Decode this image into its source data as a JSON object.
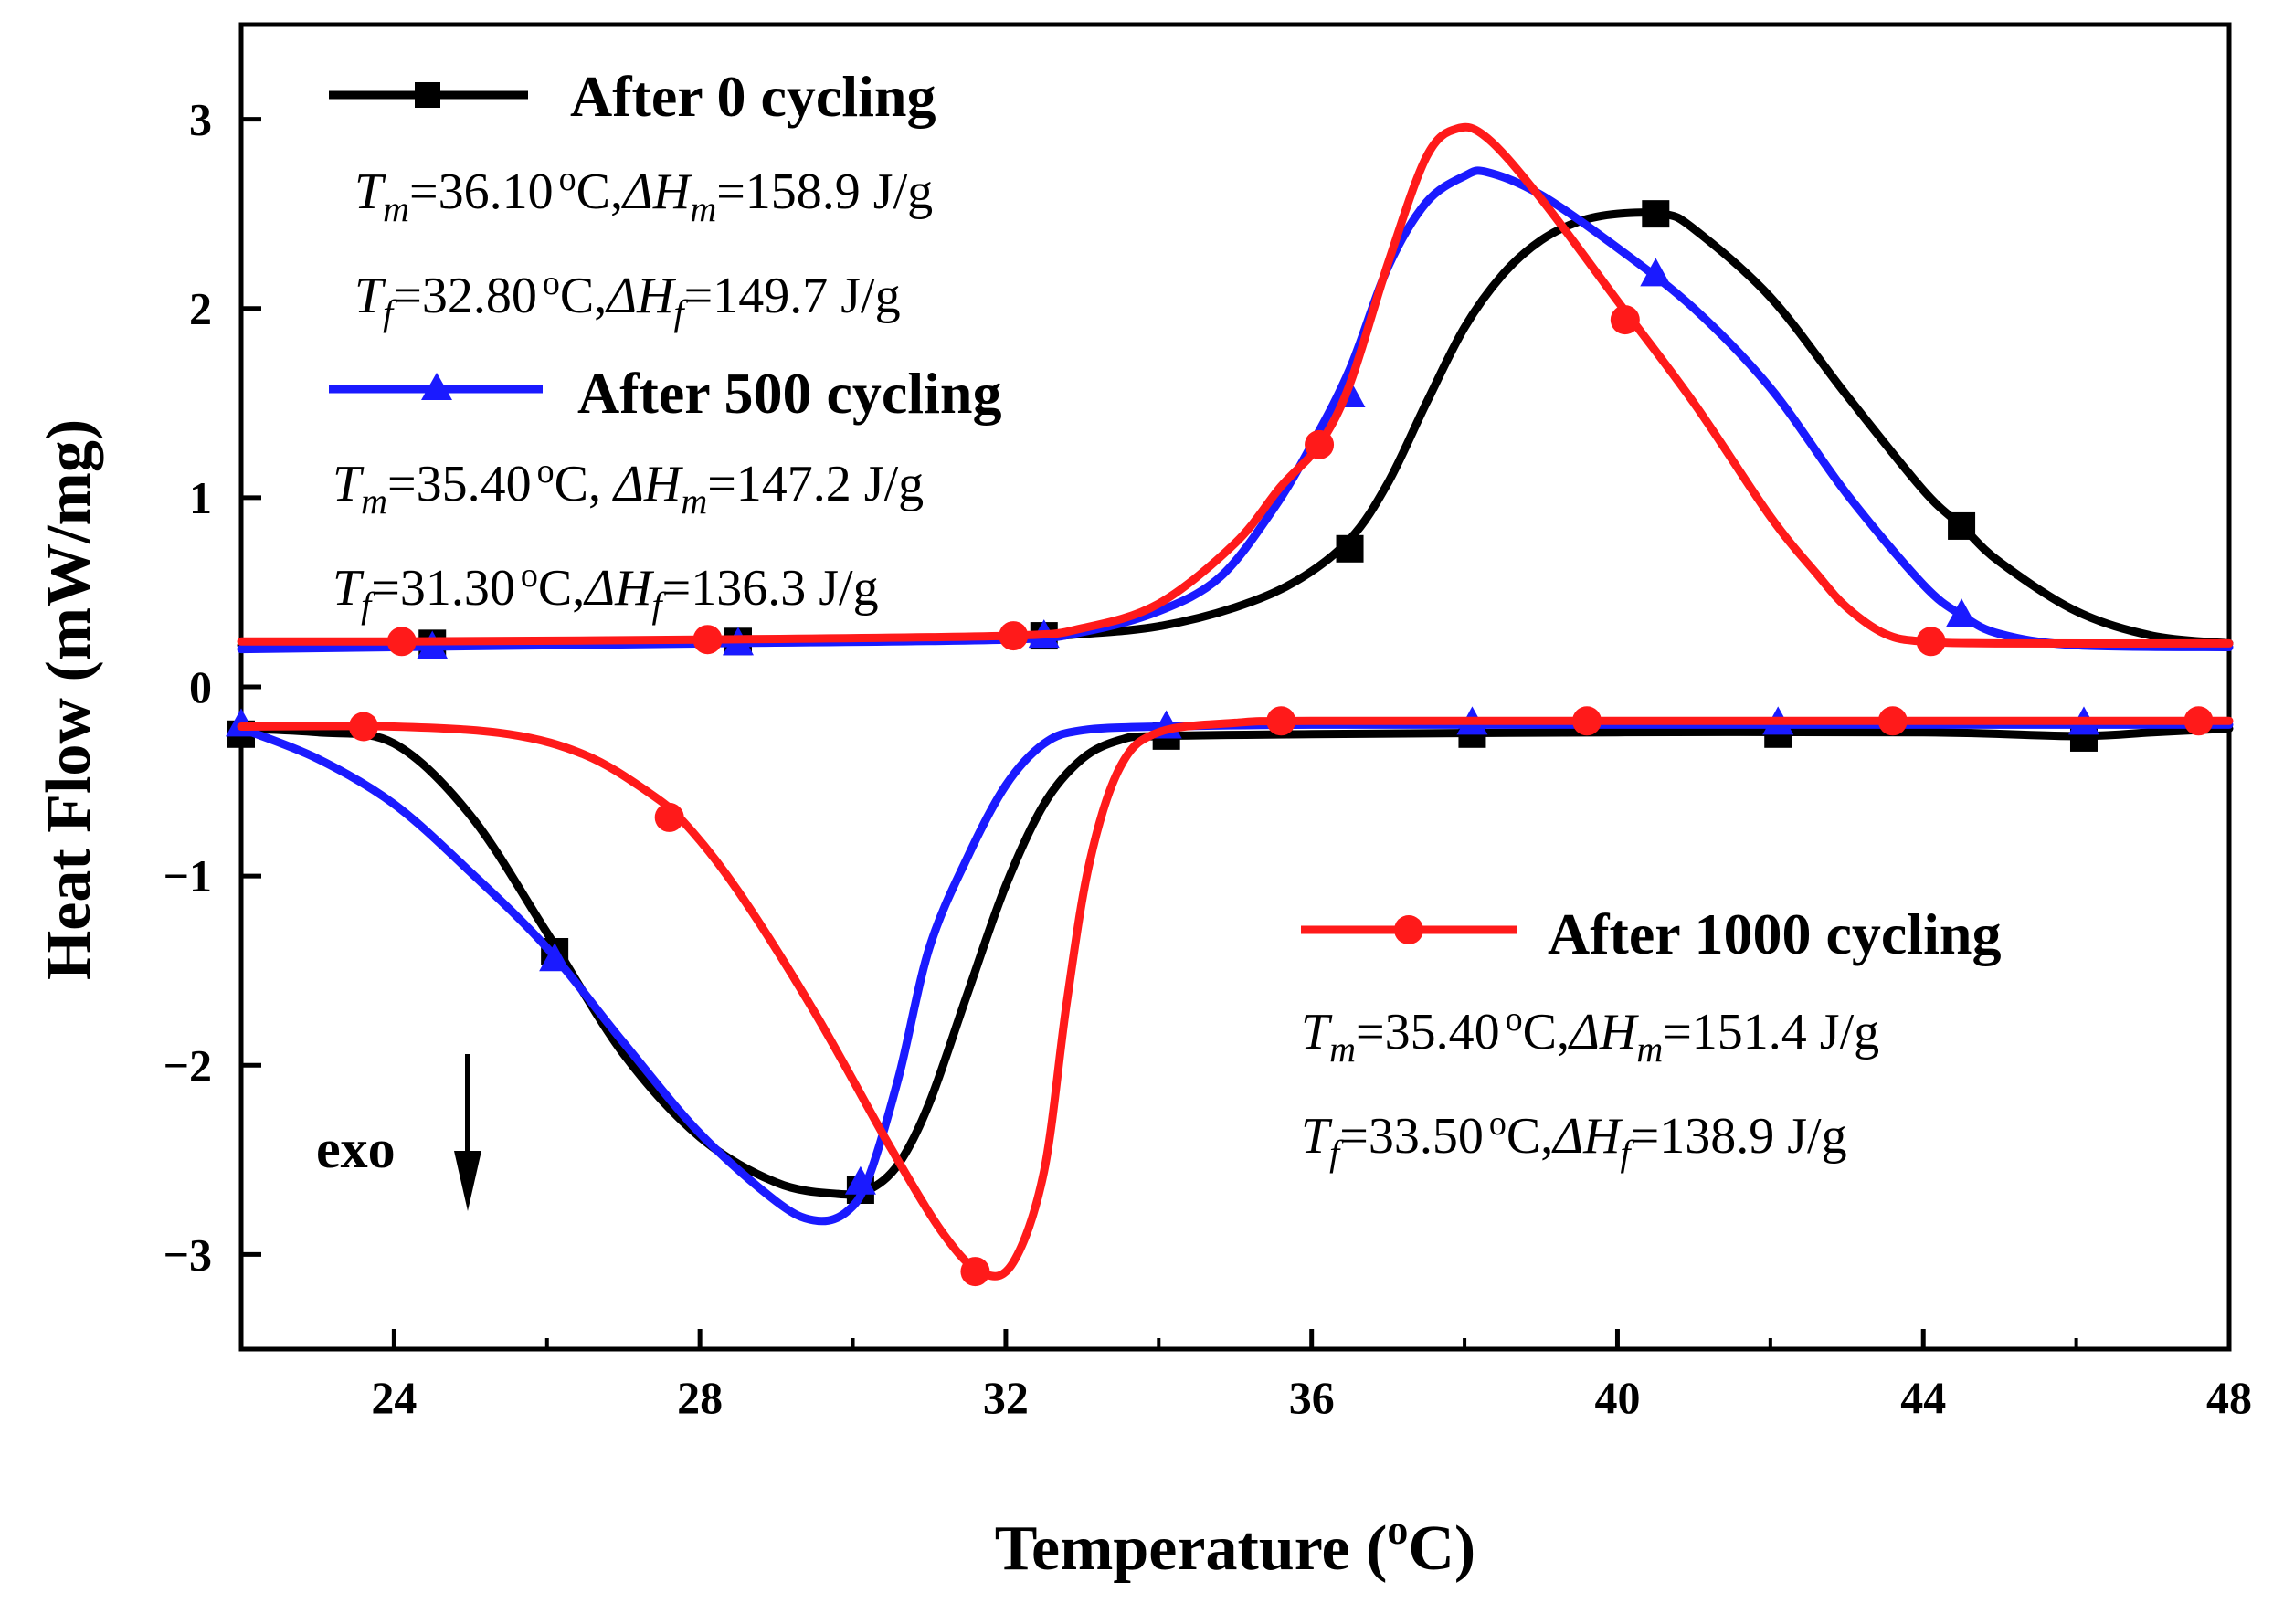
{
  "chart_data": {
    "type": "line",
    "xlabel": "Temperature (°C)",
    "xlabel_parts": {
      "prefix": "Temperature (",
      "sup": "o",
      "suffix": "C)"
    },
    "ylabel": "Heat Flow (mW/mg)",
    "xlim": [
      22,
      48
    ],
    "ylim": [
      -3.5,
      3.5
    ],
    "x_ticks": [
      24,
      28,
      32,
      36,
      40,
      44,
      48
    ],
    "y_ticks": [
      3,
      2,
      1,
      0,
      -1,
      -2,
      -3
    ],
    "y_tick_labels": [
      "3",
      "2",
      "1",
      "0",
      "−1",
      "−2",
      "−3"
    ],
    "grid": false,
    "exo_label": "exo",
    "colors": {
      "s0": "#000000",
      "s500": "#1a1aff",
      "s1000": "#ff1a1a",
      "axes": "#000000"
    },
    "series": [
      {
        "name": "After 0 cycling",
        "color": "#000000",
        "marker": "square",
        "heating": [
          [
            22,
            0.22
          ],
          [
            24,
            0.23
          ],
          [
            28,
            0.24
          ],
          [
            32,
            0.26
          ],
          [
            33,
            0.28
          ],
          [
            34,
            0.32
          ],
          [
            35,
            0.42
          ],
          [
            35.8,
            0.56
          ],
          [
            36.5,
            0.78
          ],
          [
            37,
            1.08
          ],
          [
            37.5,
            1.5
          ],
          [
            38,
            1.9
          ],
          [
            38.5,
            2.18
          ],
          [
            39,
            2.36
          ],
          [
            39.5,
            2.46
          ],
          [
            40,
            2.5
          ],
          [
            40.6,
            2.5
          ],
          [
            41,
            2.42
          ],
          [
            42,
            2.06
          ],
          [
            43,
            1.54
          ],
          [
            44,
            1.04
          ],
          [
            44.5,
            0.85
          ],
          [
            45,
            0.66
          ],
          [
            46,
            0.4
          ],
          [
            47,
            0.27
          ],
          [
            48,
            0.23
          ]
        ],
        "cooling": [
          [
            22,
            -0.22
          ],
          [
            23,
            -0.24
          ],
          [
            24,
            -0.3
          ],
          [
            25,
            -0.68
          ],
          [
            26,
            -1.3
          ],
          [
            27,
            -1.94
          ],
          [
            28,
            -2.38
          ],
          [
            29,
            -2.62
          ],
          [
            29.8,
            -2.68
          ],
          [
            30.2,
            -2.66
          ],
          [
            30.6,
            -2.52
          ],
          [
            31,
            -2.2
          ],
          [
            31.5,
            -1.62
          ],
          [
            32,
            -1.05
          ],
          [
            32.5,
            -0.62
          ],
          [
            33,
            -0.38
          ],
          [
            33.5,
            -0.28
          ],
          [
            34,
            -0.26
          ],
          [
            36,
            -0.25
          ],
          [
            40,
            -0.24
          ],
          [
            44,
            -0.24
          ],
          [
            46,
            -0.26
          ],
          [
            47,
            -0.24
          ],
          [
            48,
            -0.22
          ]
        ],
        "heating_markers": [
          [
            24.5,
            0.23
          ],
          [
            28.5,
            0.24
          ],
          [
            32.5,
            0.27
          ],
          [
            36.5,
            0.73
          ],
          [
            40.5,
            2.5
          ],
          [
            44.5,
            0.85
          ]
        ],
        "cooling_markers": [
          [
            22,
            -0.25
          ],
          [
            26.1,
            -1.4
          ],
          [
            30.1,
            -2.66
          ],
          [
            34.1,
            -0.26
          ],
          [
            38.1,
            -0.25
          ],
          [
            42.1,
            -0.25
          ],
          [
            46.1,
            -0.27
          ]
        ],
        "annotations": {
          "melt": {
            "T": "T",
            "Tsub": "m",
            "Tval": "=36.10",
            "deg": "o",
            "C": "C,",
            "dH": "ΔH",
            "dHsub": "m",
            "dHval": "=158.9 J/g"
          },
          "freeze": {
            "T": "T",
            "Tsub": "f",
            "Tval": "=32.80",
            "deg": "o",
            "C": "C,",
            "dH": "ΔH",
            "dHsub": "f",
            "dHval": "=149.7 J/g"
          }
        }
      },
      {
        "name": "After 500 cycling",
        "color": "#1a1aff",
        "marker": "triangle",
        "heating": [
          [
            22,
            0.2
          ],
          [
            24,
            0.21
          ],
          [
            28,
            0.23
          ],
          [
            32,
            0.25
          ],
          [
            33,
            0.29
          ],
          [
            34,
            0.4
          ],
          [
            34.8,
            0.58
          ],
          [
            35.5,
            0.94
          ],
          [
            36,
            1.28
          ],
          [
            36.5,
            1.68
          ],
          [
            37,
            2.22
          ],
          [
            37.5,
            2.56
          ],
          [
            38,
            2.7
          ],
          [
            38.3,
            2.72
          ],
          [
            39,
            2.6
          ],
          [
            40,
            2.32
          ],
          [
            41,
            2.0
          ],
          [
            42,
            1.58
          ],
          [
            43,
            1.02
          ],
          [
            44,
            0.54
          ],
          [
            44.5,
            0.38
          ],
          [
            45,
            0.28
          ],
          [
            46,
            0.22
          ],
          [
            48,
            0.21
          ]
        ],
        "cooling": [
          [
            22,
            -0.22
          ],
          [
            23,
            -0.38
          ],
          [
            24,
            -0.62
          ],
          [
            25,
            -0.98
          ],
          [
            26,
            -1.38
          ],
          [
            27,
            -1.88
          ],
          [
            28,
            -2.36
          ],
          [
            29,
            -2.72
          ],
          [
            29.5,
            -2.82
          ],
          [
            29.9,
            -2.78
          ],
          [
            30.2,
            -2.6
          ],
          [
            30.6,
            -2.06
          ],
          [
            31,
            -1.38
          ],
          [
            31.5,
            -0.9
          ],
          [
            32,
            -0.52
          ],
          [
            32.5,
            -0.3
          ],
          [
            33,
            -0.23
          ],
          [
            34,
            -0.21
          ],
          [
            36,
            -0.2
          ],
          [
            40,
            -0.2
          ],
          [
            44,
            -0.2
          ],
          [
            48,
            -0.2
          ]
        ],
        "heating_markers": [
          [
            24.5,
            0.21
          ],
          [
            28.5,
            0.23
          ],
          [
            32.5,
            0.27
          ],
          [
            36.5,
            1.54
          ],
          [
            40.5,
            2.18
          ],
          [
            44.5,
            0.38
          ]
        ],
        "cooling_markers": [
          [
            22,
            -0.2
          ],
          [
            26.1,
            -1.44
          ],
          [
            30.1,
            -2.62
          ],
          [
            34.1,
            -0.21
          ],
          [
            38.1,
            -0.19
          ],
          [
            42.1,
            -0.19
          ],
          [
            46.1,
            -0.19
          ]
        ],
        "annotations": {
          "melt": {
            "T": "T",
            "Tsub": "m",
            "Tval": "=35.40",
            "deg": "o",
            "C": "C, ",
            "dH": "ΔH",
            "dHsub": "m",
            "dHval": "=147.2 J/g"
          },
          "freeze": {
            "T": "T",
            "Tsub": "f",
            "Tval": "=31.30",
            "deg": "o",
            "C": "C,",
            "dH": "ΔH",
            "dHsub": "f",
            "dHval": "=136.3 J/g"
          }
        }
      },
      {
        "name": "After 1000 cycling",
        "color": "#ff1a1a",
        "marker": "circle",
        "heating": [
          [
            22,
            0.24
          ],
          [
            24,
            0.24
          ],
          [
            28,
            0.25
          ],
          [
            32,
            0.27
          ],
          [
            33,
            0.31
          ],
          [
            34,
            0.44
          ],
          [
            35,
            0.76
          ],
          [
            35.6,
            1.06
          ],
          [
            36.1,
            1.28
          ],
          [
            36.5,
            1.6
          ],
          [
            37,
            2.24
          ],
          [
            37.5,
            2.8
          ],
          [
            37.9,
            2.95
          ],
          [
            38.3,
            2.9
          ],
          [
            39,
            2.58
          ],
          [
            40,
            2.04
          ],
          [
            41,
            1.5
          ],
          [
            42,
            0.9
          ],
          [
            42.6,
            0.6
          ],
          [
            43,
            0.42
          ],
          [
            43.5,
            0.28
          ],
          [
            44,
            0.24
          ],
          [
            45,
            0.23
          ],
          [
            48,
            0.23
          ]
        ],
        "cooling": [
          [
            22,
            -0.21
          ],
          [
            24,
            -0.21
          ],
          [
            25.5,
            -0.25
          ],
          [
            26.5,
            -0.36
          ],
          [
            27.3,
            -0.55
          ],
          [
            27.8,
            -0.72
          ],
          [
            28.5,
            -1.08
          ],
          [
            29.5,
            -1.72
          ],
          [
            30.5,
            -2.44
          ],
          [
            31.2,
            -2.9
          ],
          [
            31.7,
            -3.1
          ],
          [
            32.1,
            -3.04
          ],
          [
            32.5,
            -2.56
          ],
          [
            32.8,
            -1.66
          ],
          [
            33.1,
            -0.92
          ],
          [
            33.5,
            -0.42
          ],
          [
            34,
            -0.24
          ],
          [
            35,
            -0.19
          ],
          [
            36,
            -0.18
          ],
          [
            40,
            -0.18
          ],
          [
            44,
            -0.18
          ],
          [
            48,
            -0.18
          ]
        ],
        "heating_markers": [
          [
            24.1,
            0.24
          ],
          [
            28.1,
            0.25
          ],
          [
            32.1,
            0.27
          ],
          [
            36.1,
            1.28
          ],
          [
            40.1,
            1.94
          ],
          [
            44.1,
            0.24
          ]
        ],
        "cooling_markers": [
          [
            23.6,
            -0.21
          ],
          [
            27.6,
            -0.69
          ],
          [
            31.6,
            -3.09
          ],
          [
            35.6,
            -0.18
          ],
          [
            39.6,
            -0.18
          ],
          [
            43.6,
            -0.18
          ],
          [
            47.6,
            -0.18
          ]
        ],
        "annotations": {
          "melt": {
            "T": "T",
            "Tsub": "m",
            "Tval": "=35.40",
            "deg": "o",
            "C": "C,",
            "dH": "ΔH",
            "dHsub": "m",
            "dHval": "=151.4 J/g"
          },
          "freeze": {
            "T": "T",
            "Tsub": "f",
            "Tval": "=33.50",
            "deg": "o",
            "C": "C,",
            "dH": "ΔH",
            "dHsub": "f",
            "dHval": "=138.9 J/g"
          }
        }
      }
    ]
  }
}
